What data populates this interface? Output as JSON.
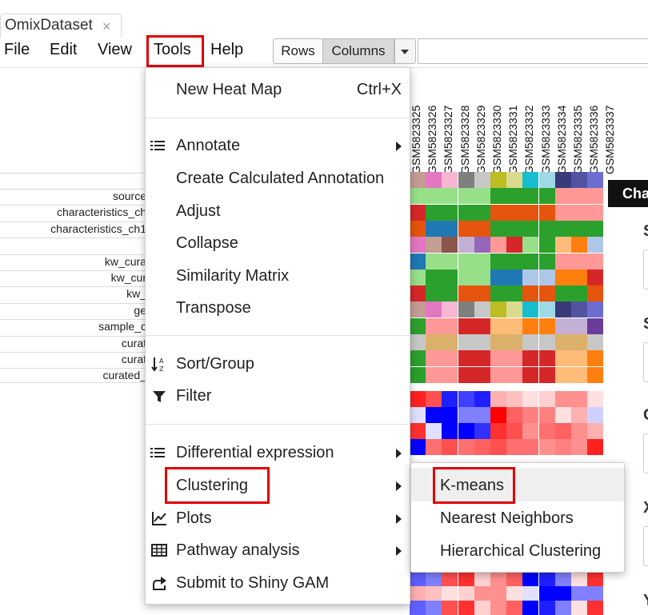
{
  "tab": {
    "title": "OmixDataset",
    "close": "×"
  },
  "menubar": {
    "file": "File",
    "edit": "Edit",
    "view": "View",
    "tools": "Tools",
    "help": "Help"
  },
  "toolbar": {
    "rows": "Rows",
    "columns": "Columns"
  },
  "column_headers": [
    "GSM5823325",
    "GSM5823326",
    "GSM5823327",
    "GSM5823328",
    "GSM5823329",
    "GSM5823330",
    "GSM5823331",
    "GSM5823332",
    "GSM5823333",
    "GSM5823334",
    "GSM5823335",
    "GSM5823336",
    "GSM5823337"
  ],
  "row_labels": [
    "source",
    "characteristics_ch",
    "characteristics_ch1",
    "",
    "kw_cura",
    "kw_cur",
    "kw_",
    "ge",
    "sample_c",
    "curat",
    "curat",
    "curated_"
  ],
  "side_panel": {
    "label": "Cha",
    "letters": [
      "S",
      "S",
      "C",
      "X",
      "Y"
    ]
  },
  "tools_menu": {
    "items": [
      {
        "label": "New Heat Map",
        "shortcut": "Ctrl+X"
      },
      {
        "label": "Annotate",
        "icon": "list-icon",
        "submenu": true
      },
      {
        "label": "Create Calculated Annotation"
      },
      {
        "label": "Adjust"
      },
      {
        "label": "Collapse"
      },
      {
        "label": "Similarity Matrix"
      },
      {
        "label": "Transpose"
      },
      {
        "label": "Sort/Group",
        "icon": "sort-az-icon"
      },
      {
        "label": "Filter",
        "icon": "filter-icon"
      },
      {
        "label": "Differential expression",
        "icon": "list-icon",
        "submenu": true
      },
      {
        "label": "Clustering",
        "submenu": true,
        "highlighted": true
      },
      {
        "label": "Plots",
        "icon": "line-chart-icon",
        "submenu": true
      },
      {
        "label": "Pathway analysis",
        "icon": "table-icon",
        "submenu": true
      },
      {
        "label": "Submit to Shiny GAM",
        "icon": "share-icon"
      }
    ]
  },
  "clustering_submenu": {
    "items": [
      {
        "label": "K-means",
        "highlighted": true
      },
      {
        "label": "Nearest Neighbors"
      },
      {
        "label": "Hierarchical Clustering"
      }
    ]
  },
  "colors": {
    "highlight_box": "#e00000"
  }
}
